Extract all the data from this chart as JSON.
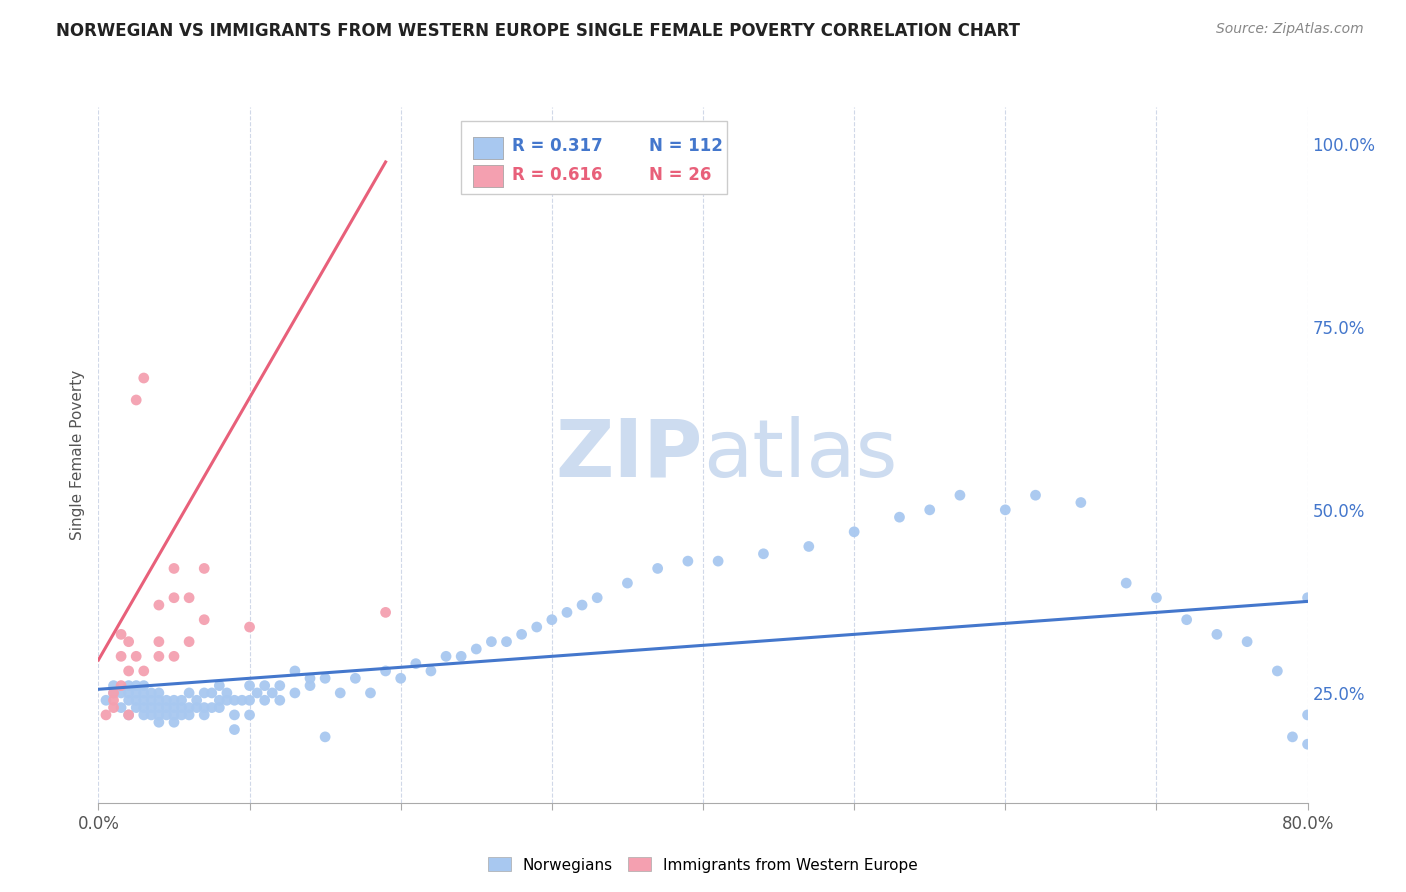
{
  "title": "NORWEGIAN VS IMMIGRANTS FROM WESTERN EUROPE SINGLE FEMALE POVERTY CORRELATION CHART",
  "source_text": "Source: ZipAtlas.com",
  "ylabel": "Single Female Poverty",
  "watermark": "ZIPatlas",
  "legend_blue_r": "R = 0.317",
  "legend_blue_n": "N = 112",
  "legend_pink_r": "R = 0.616",
  "legend_pink_n": "N = 26",
  "legend_label_blue": "Norwegians",
  "legend_label_pink": "Immigrants from Western Europe",
  "xlim": [
    0.0,
    0.8
  ],
  "ylim": [
    0.1,
    1.05
  ],
  "xticks": [
    0.0,
    0.1,
    0.2,
    0.3,
    0.4,
    0.5,
    0.6,
    0.7,
    0.8
  ],
  "yticks_right": [
    0.25,
    0.5,
    0.75,
    1.0
  ],
  "blue_color": "#a8c8f0",
  "pink_color": "#f4a0b0",
  "blue_line_color": "#4477cc",
  "pink_line_color": "#e8607a",
  "background_color": "#ffffff",
  "grid_color": "#d0d8e8",
  "title_color": "#222222",
  "source_color": "#888888",
  "watermark_color": "#cddcf0",
  "blue_x": [
    0.005,
    0.01,
    0.01,
    0.015,
    0.015,
    0.02,
    0.02,
    0.02,
    0.02,
    0.025,
    0.025,
    0.025,
    0.025,
    0.03,
    0.03,
    0.03,
    0.03,
    0.03,
    0.035,
    0.035,
    0.035,
    0.035,
    0.04,
    0.04,
    0.04,
    0.04,
    0.04,
    0.045,
    0.045,
    0.045,
    0.05,
    0.05,
    0.05,
    0.05,
    0.055,
    0.055,
    0.055,
    0.06,
    0.06,
    0.06,
    0.065,
    0.065,
    0.07,
    0.07,
    0.07,
    0.075,
    0.075,
    0.08,
    0.08,
    0.08,
    0.085,
    0.085,
    0.09,
    0.09,
    0.09,
    0.095,
    0.1,
    0.1,
    0.1,
    0.105,
    0.11,
    0.11,
    0.115,
    0.12,
    0.12,
    0.13,
    0.13,
    0.14,
    0.14,
    0.15,
    0.15,
    0.16,
    0.17,
    0.18,
    0.19,
    0.2,
    0.21,
    0.22,
    0.23,
    0.24,
    0.25,
    0.26,
    0.27,
    0.28,
    0.29,
    0.3,
    0.31,
    0.32,
    0.33,
    0.35,
    0.37,
    0.39,
    0.41,
    0.44,
    0.47,
    0.5,
    0.53,
    0.55,
    0.57,
    0.6,
    0.62,
    0.65,
    0.68,
    0.7,
    0.72,
    0.74,
    0.76,
    0.78,
    0.79,
    0.8,
    0.8,
    0.8
  ],
  "blue_y": [
    0.24,
    0.25,
    0.26,
    0.23,
    0.25,
    0.22,
    0.24,
    0.25,
    0.26,
    0.23,
    0.24,
    0.25,
    0.26,
    0.22,
    0.23,
    0.24,
    0.25,
    0.26,
    0.22,
    0.23,
    0.24,
    0.25,
    0.21,
    0.22,
    0.23,
    0.24,
    0.25,
    0.22,
    0.23,
    0.24,
    0.21,
    0.22,
    0.23,
    0.24,
    0.22,
    0.23,
    0.24,
    0.22,
    0.23,
    0.25,
    0.23,
    0.24,
    0.22,
    0.23,
    0.25,
    0.23,
    0.25,
    0.23,
    0.24,
    0.26,
    0.24,
    0.25,
    0.2,
    0.22,
    0.24,
    0.24,
    0.22,
    0.24,
    0.26,
    0.25,
    0.24,
    0.26,
    0.25,
    0.24,
    0.26,
    0.25,
    0.28,
    0.26,
    0.27,
    0.19,
    0.27,
    0.25,
    0.27,
    0.25,
    0.28,
    0.27,
    0.29,
    0.28,
    0.3,
    0.3,
    0.31,
    0.32,
    0.32,
    0.33,
    0.34,
    0.35,
    0.36,
    0.37,
    0.38,
    0.4,
    0.42,
    0.43,
    0.43,
    0.44,
    0.45,
    0.47,
    0.49,
    0.5,
    0.52,
    0.5,
    0.52,
    0.51,
    0.4,
    0.38,
    0.35,
    0.33,
    0.32,
    0.28,
    0.19,
    0.18,
    0.22,
    0.38
  ],
  "pink_x": [
    0.005,
    0.01,
    0.01,
    0.01,
    0.015,
    0.015,
    0.015,
    0.02,
    0.02,
    0.02,
    0.025,
    0.025,
    0.03,
    0.03,
    0.04,
    0.04,
    0.04,
    0.05,
    0.05,
    0.05,
    0.06,
    0.06,
    0.07,
    0.07,
    0.1,
    0.19
  ],
  "pink_y": [
    0.22,
    0.23,
    0.24,
    0.25,
    0.26,
    0.3,
    0.33,
    0.28,
    0.32,
    0.22,
    0.3,
    0.65,
    0.28,
    0.68,
    0.3,
    0.37,
    0.32,
    0.3,
    0.38,
    0.42,
    0.32,
    0.38,
    0.35,
    0.42,
    0.34,
    0.36
  ],
  "blue_trendline_x": [
    0.0,
    0.8
  ],
  "blue_trendline_y": [
    0.255,
    0.375
  ],
  "pink_trendline_x": [
    0.0,
    0.19
  ],
  "pink_trendline_y": [
    0.295,
    0.975
  ]
}
